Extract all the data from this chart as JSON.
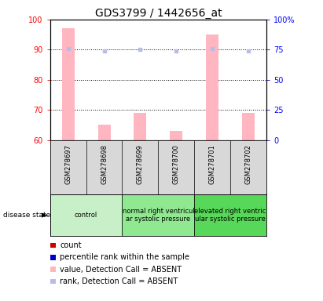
{
  "title": "GDS3799 / 1442656_at",
  "samples": [
    "GSM278697",
    "GSM278698",
    "GSM278699",
    "GSM278700",
    "GSM278701",
    "GSM278702"
  ],
  "bar_values_absent": [
    97,
    65,
    69,
    63,
    95,
    69
  ],
  "bar_bottom": 60,
  "rank_absent": [
    76,
    74,
    75,
    74,
    76,
    74
  ],
  "ylim_left": [
    60,
    100
  ],
  "ylim_right": [
    0,
    100
  ],
  "yticks_left": [
    60,
    70,
    80,
    90,
    100
  ],
  "yticks_right": [
    0,
    25,
    50,
    75,
    100
  ],
  "ytick_labels_right": [
    "0",
    "25",
    "50",
    "75",
    "100%"
  ],
  "bar_color_absent": "#ffb6c1",
  "rank_color_absent": "#b8bce8",
  "groups": [
    {
      "label": "control",
      "start": 0,
      "end": 2,
      "color": "#c8f0c8"
    },
    {
      "label": "normal right ventricul\nar systolic pressure",
      "start": 2,
      "end": 4,
      "color": "#90e890"
    },
    {
      "label": "elevated right ventric\nular systolic pressure",
      "start": 4,
      "end": 6,
      "color": "#58d858"
    }
  ],
  "disease_state_label": "disease state",
  "legend_items": [
    {
      "color": "#cc0000",
      "label": "count"
    },
    {
      "color": "#0000cc",
      "label": "percentile rank within the sample"
    },
    {
      "color": "#ffb6c1",
      "label": "value, Detection Call = ABSENT"
    },
    {
      "color": "#b8bce8",
      "label": "rank, Detection Call = ABSENT"
    }
  ],
  "title_fontsize": 10,
  "tick_fontsize": 7,
  "sample_fontsize": 6,
  "group_fontsize": 6,
  "legend_fontsize": 7
}
